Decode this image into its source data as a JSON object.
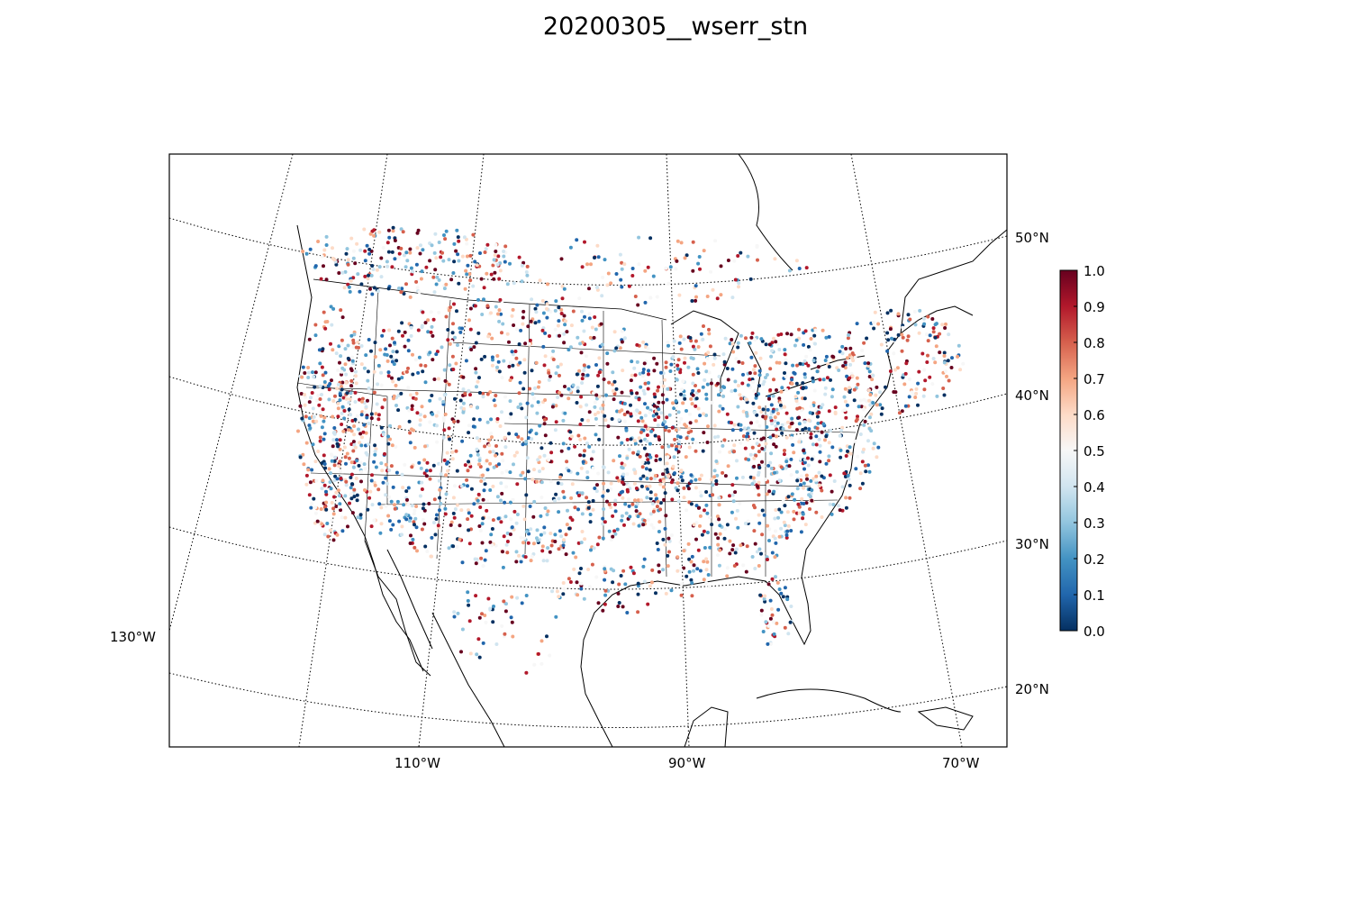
{
  "title": "20200305__wserr_stn",
  "map": {
    "projection": "lambert-conformal",
    "meridians": [
      {
        "label": "130°W"
      },
      {
        "label": "110°W"
      },
      {
        "label": "90°W"
      },
      {
        "label": "70°W"
      }
    ],
    "parallels": [
      {
        "label": "20°N"
      },
      {
        "label": "30°N"
      },
      {
        "label": "40°N"
      },
      {
        "label": "50°N"
      }
    ],
    "features": [
      "coastlines",
      "countries",
      "states"
    ],
    "gridline_style": "dotted"
  },
  "colorbar": {
    "colormap": "RdBu_r",
    "range": [
      0.0,
      1.0
    ],
    "ticks": [
      "0.0",
      "0.1",
      "0.2",
      "0.3",
      "0.4",
      "0.5",
      "0.6",
      "0.7",
      "0.8",
      "0.9",
      "1.0"
    ],
    "colors": [
      "#053061",
      "#2166ac",
      "#4393c3",
      "#92c5de",
      "#d1e5f0",
      "#f7f7f7",
      "#fddbc7",
      "#f4a582",
      "#d6604d",
      "#b2182b",
      "#67001f"
    ]
  },
  "chart_data": {
    "type": "scatter",
    "title": "20200305__wserr_stn",
    "description_values": "station markers colored by value in [0,1]; dense coverage over CONUS, sparse over Canada/Mexico/Gulf",
    "value_range": [
      0.0,
      1.0
    ]
  }
}
